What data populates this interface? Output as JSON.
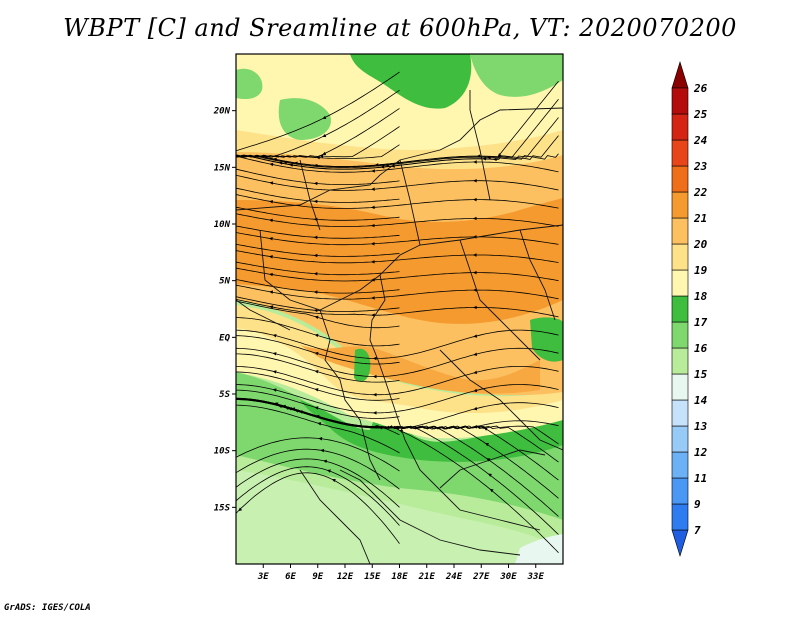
{
  "title": "WBPT [C] and Sreamline at 600hPa, VT: 2020070200",
  "credit": "GrADS: IGES/COLA",
  "map": {
    "lon_range": [
      0,
      36
    ],
    "lat_range": [
      -20,
      25
    ],
    "x_tick_labels": [
      "3E",
      "6E",
      "9E",
      "12E",
      "15E",
      "18E",
      "21E",
      "24E",
      "27E",
      "30E",
      "33E"
    ],
    "x_tick_values": [
      3,
      6,
      9,
      12,
      15,
      18,
      21,
      24,
      27,
      30,
      33
    ],
    "y_tick_labels": [
      "15S",
      "10S",
      "5S",
      "EQ",
      "5N",
      "10N",
      "15N",
      "20N"
    ],
    "y_tick_values": [
      -15,
      -10,
      -5,
      0,
      5,
      10,
      15,
      20
    ]
  },
  "colorbar": {
    "labels": [
      "7",
      "9",
      "11",
      "12",
      "13",
      "14",
      "15",
      "16",
      "17",
      "18",
      "19",
      "20",
      "21",
      "22",
      "23",
      "24",
      "25",
      "26"
    ],
    "colors": [
      "#1f5ee0",
      "#2f7cf0",
      "#4a98f4",
      "#6cb0f6",
      "#98caf8",
      "#c6e2fa",
      "#e8f7f0",
      "#b8ec9a",
      "#7ed86e",
      "#3ebd3e",
      "#fff6b0",
      "#fee28a",
      "#fcc060",
      "#f59a2e",
      "#ef6e1a",
      "#e8451a",
      "#d42414",
      "#b40c0c",
      "#8a0000"
    ]
  },
  "chart_data": {
    "type": "heatmap",
    "title": "WBPT [C] and Sreamline at 600hPa, VT: 2020070200",
    "variable": "WBPT [C]",
    "levels": [
      7,
      9,
      11,
      12,
      13,
      14,
      15,
      16,
      17,
      18,
      19,
      20,
      21,
      22,
      23,
      24,
      25,
      26
    ],
    "regions": [
      {
        "lat_range": [
          -20,
          -8
        ],
        "value_range": [
          15,
          17
        ]
      },
      {
        "lat_range": [
          -8,
          0
        ],
        "value_range": [
          17,
          19
        ]
      },
      {
        "lat_range": [
          0,
          13
        ],
        "value_range": [
          20,
          22
        ]
      },
      {
        "lat_range": [
          13,
          17
        ],
        "value_range": [
          19,
          21
        ]
      },
      {
        "lat_range": [
          17,
          25
        ],
        "value_range": [
          17,
          19
        ]
      }
    ]
  }
}
